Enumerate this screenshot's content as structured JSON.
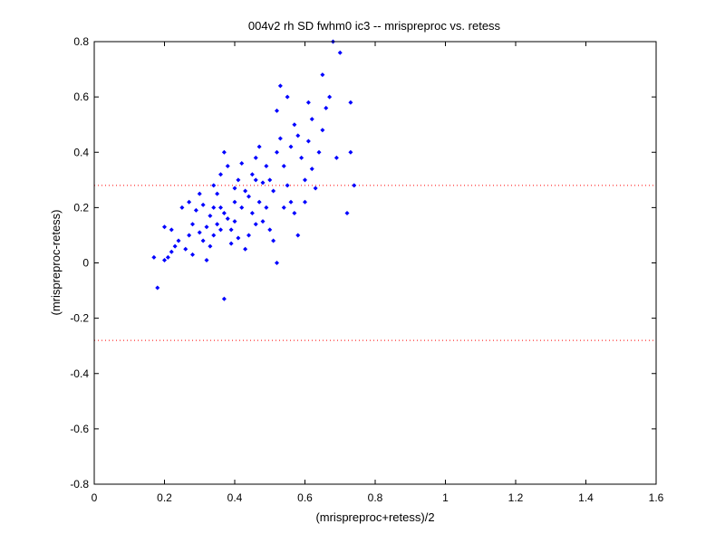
{
  "chart_data": {
    "type": "scatter",
    "title": "004v2 rh SD fwhm0 ic3 -- mrispreproc vs. retess",
    "xlabel": "(mrispreproc+retess)/2",
    "ylabel": "(mrispreproc-retess)",
    "xlim": [
      0,
      1.6
    ],
    "ylim": [
      -0.8,
      0.8
    ],
    "xticks": [
      0,
      0.2,
      0.4,
      0.6,
      0.8,
      1,
      1.2,
      1.4,
      1.6
    ],
    "xtick_labels": [
      "0",
      "0.2",
      "0.4",
      "0.6",
      "0.8",
      "1",
      "1.2",
      "1.4",
      "1.6"
    ],
    "yticks": [
      -0.8,
      -0.6,
      -0.4,
      -0.2,
      0,
      0.2,
      0.4,
      0.6,
      0.8
    ],
    "ytick_labels": [
      "-0.8",
      "-0.6",
      "-0.4",
      "-0.2",
      "0",
      "0.2",
      "0.4",
      "0.6",
      "0.8"
    ],
    "reference_lines": [
      0.28,
      -0.28
    ],
    "grid": false,
    "colors": {
      "points": "#0000ff",
      "reference": "#ff0000",
      "axes": "#000000"
    },
    "series": [
      {
        "points": [
          [
            0.18,
            -0.09
          ],
          [
            0.37,
            -0.13
          ],
          [
            0.17,
            0.02
          ],
          [
            0.2,
            0.01
          ],
          [
            0.21,
            0.02
          ],
          [
            0.22,
            0.04
          ],
          [
            0.23,
            0.06
          ],
          [
            0.24,
            0.08
          ],
          [
            0.22,
            0.12
          ],
          [
            0.2,
            0.13
          ],
          [
            0.26,
            0.05
          ],
          [
            0.27,
            0.1
          ],
          [
            0.28,
            0.14
          ],
          [
            0.25,
            0.2
          ],
          [
            0.27,
            0.22
          ],
          [
            0.29,
            0.19
          ],
          [
            0.3,
            0.25
          ],
          [
            0.28,
            0.03
          ],
          [
            0.31,
            0.08
          ],
          [
            0.32,
            0.13
          ],
          [
            0.33,
            0.17
          ],
          [
            0.31,
            0.21
          ],
          [
            0.33,
            0.06
          ],
          [
            0.34,
            0.1
          ],
          [
            0.35,
            0.14
          ],
          [
            0.36,
            0.12
          ],
          [
            0.37,
            0.18
          ],
          [
            0.38,
            0.16
          ],
          [
            0.35,
            0.25
          ],
          [
            0.36,
            0.2
          ],
          [
            0.34,
            0.28
          ],
          [
            0.36,
            0.32
          ],
          [
            0.37,
            0.4
          ],
          [
            0.38,
            0.35
          ],
          [
            0.39,
            0.12
          ],
          [
            0.4,
            0.15
          ],
          [
            0.41,
            0.09
          ],
          [
            0.4,
            0.22
          ],
          [
            0.42,
            0.2
          ],
          [
            0.43,
            0.26
          ],
          [
            0.41,
            0.3
          ],
          [
            0.42,
            0.36
          ],
          [
            0.44,
            0.24
          ],
          [
            0.45,
            0.18
          ],
          [
            0.46,
            0.14
          ],
          [
            0.44,
            0.1
          ],
          [
            0.45,
            0.32
          ],
          [
            0.46,
            0.38
          ],
          [
            0.47,
            0.42
          ],
          [
            0.48,
            0.29
          ],
          [
            0.47,
            0.22
          ],
          [
            0.49,
            0.2
          ],
          [
            0.5,
            0.12
          ],
          [
            0.51,
            0.08
          ],
          [
            0.49,
            0.35
          ],
          [
            0.5,
            0.3
          ],
          [
            0.51,
            0.26
          ],
          [
            0.52,
            0.4
          ],
          [
            0.53,
            0.45
          ],
          [
            0.52,
            0.55
          ],
          [
            0.53,
            0.64
          ],
          [
            0.55,
            0.6
          ],
          [
            0.54,
            0.35
          ],
          [
            0.55,
            0.28
          ],
          [
            0.56,
            0.22
          ],
          [
            0.57,
            0.18
          ],
          [
            0.56,
            0.42
          ],
          [
            0.57,
            0.5
          ],
          [
            0.58,
            0.46
          ],
          [
            0.59,
            0.38
          ],
          [
            0.58,
            0.1
          ],
          [
            0.52,
            0.0
          ],
          [
            0.6,
            0.3
          ],
          [
            0.61,
            0.44
          ],
          [
            0.62,
            0.52
          ],
          [
            0.61,
            0.58
          ],
          [
            0.62,
            0.34
          ],
          [
            0.63,
            0.27
          ],
          [
            0.64,
            0.4
          ],
          [
            0.65,
            0.48
          ],
          [
            0.66,
            0.56
          ],
          [
            0.65,
            0.68
          ],
          [
            0.67,
            0.6
          ],
          [
            0.68,
            0.8
          ],
          [
            0.7,
            0.76
          ],
          [
            0.69,
            0.38
          ],
          [
            0.72,
            0.18
          ],
          [
            0.73,
            0.58
          ],
          [
            0.73,
            0.4
          ],
          [
            0.74,
            0.28
          ],
          [
            0.43,
            0.05
          ],
          [
            0.39,
            0.07
          ],
          [
            0.32,
            0.01
          ],
          [
            0.3,
            0.11
          ],
          [
            0.34,
            0.2
          ],
          [
            0.4,
            0.27
          ],
          [
            0.46,
            0.3
          ],
          [
            0.48,
            0.15
          ],
          [
            0.54,
            0.2
          ],
          [
            0.6,
            0.22
          ]
        ]
      }
    ]
  }
}
